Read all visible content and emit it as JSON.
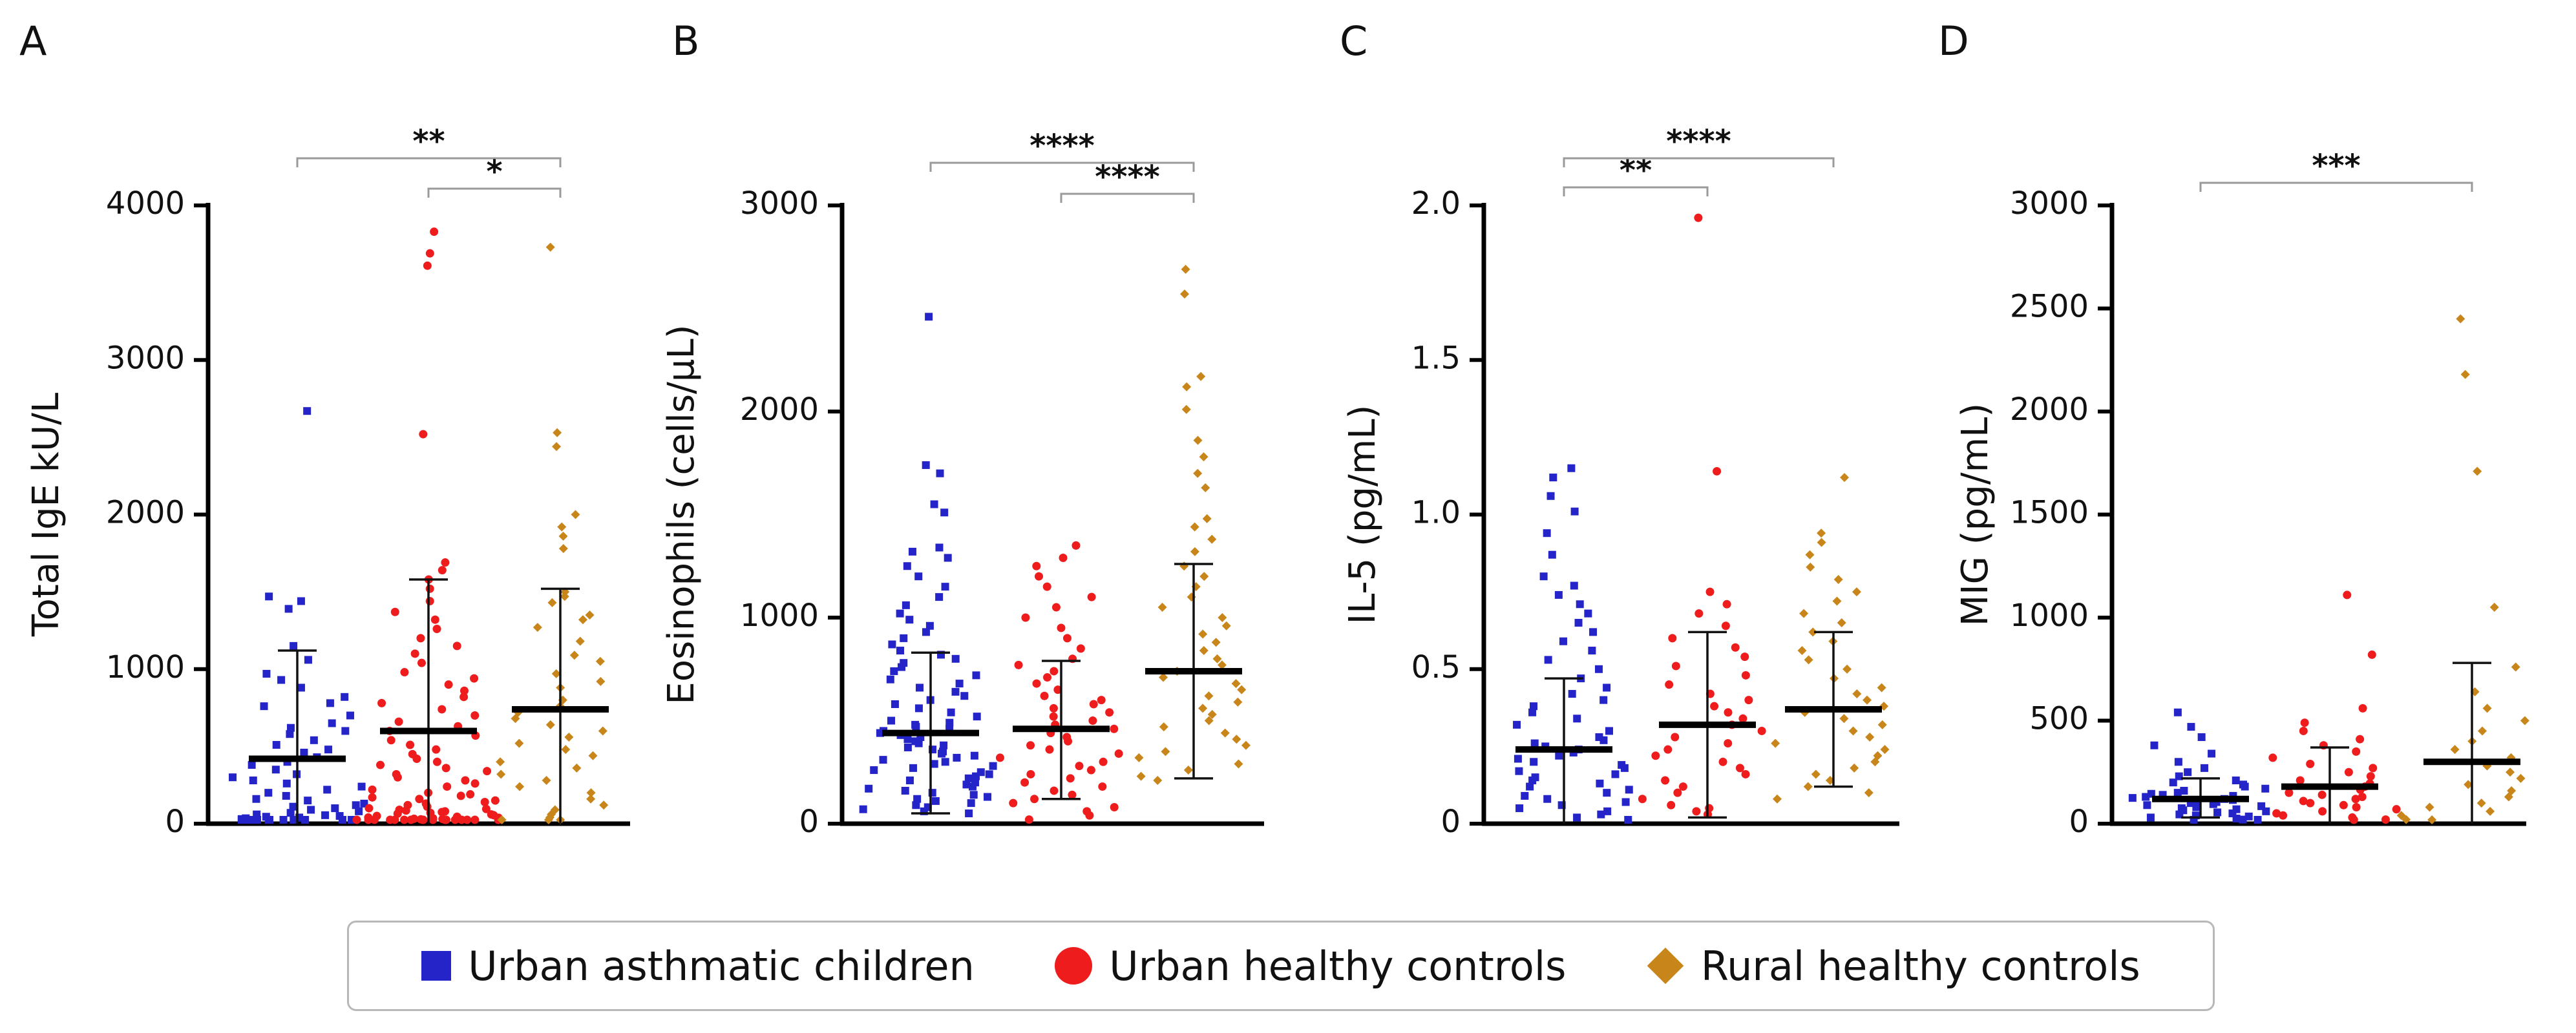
{
  "colors": {
    "urban_asthmatic": "#2424c8",
    "urban_healthy": "#ee1c1c",
    "rural_healthy": "#c8861a",
    "axis": "#000000",
    "bracket": "#9a9a9a"
  },
  "legend": {
    "items": [
      {
        "label": "Urban asthmatic children",
        "marker": "square",
        "color": "#2424c8"
      },
      {
        "label": "Urban healthy controls",
        "marker": "circle",
        "color": "#ee1c1c"
      },
      {
        "label": "Rural healthy controls",
        "marker": "diamond",
        "color": "#c8861a"
      }
    ]
  },
  "chart_data": [
    {
      "type": "scatter",
      "panel_label": "A",
      "ylabel": "Total IgE kU/L",
      "ylim": [
        0,
        4000
      ],
      "yticks": [
        0,
        1000,
        2000,
        3000,
        4000
      ],
      "yticklabels": [
        "0",
        "1000",
        "2000",
        "3000",
        "4000"
      ],
      "categories": [
        "Urban asthmatic children",
        "Urban healthy controls",
        "Rural healthy controls"
      ],
      "series": [
        {
          "name": "Urban asthmatic children",
          "marker": "square",
          "mean": 420,
          "sd_upper": 1120,
          "sd_lower": 0,
          "values": [
            2670,
            1470,
            1440,
            1390,
            1150,
            1060,
            970,
            930,
            880,
            820,
            780,
            760,
            700,
            650,
            620,
            600,
            580,
            540,
            510,
            480,
            460,
            430,
            400,
            380,
            350,
            320,
            300,
            280,
            260,
            240,
            220,
            200,
            180,
            160,
            150,
            130,
            120,
            110,
            100,
            90,
            80,
            70,
            60,
            55,
            50,
            45,
            40,
            35,
            30,
            25,
            20,
            18,
            15,
            12,
            10,
            8,
            6,
            5,
            4,
            3
          ]
        },
        {
          "name": "Urban healthy controls",
          "marker": "circle",
          "mean": 600,
          "sd_upper": 1580,
          "sd_lower": 0,
          "values": [
            3830,
            3690,
            3610,
            2520,
            1690,
            1640,
            1580,
            1520,
            1440,
            1370,
            1320,
            1260,
            1200,
            1150,
            1100,
            1040,
            980,
            940,
            900,
            860,
            820,
            780,
            740,
            700,
            660,
            630,
            600,
            570,
            540,
            510,
            480,
            450,
            420,
            400,
            380,
            360,
            340,
            320,
            300,
            280,
            260,
            240,
            220,
            200,
            190,
            180,
            170,
            160,
            150,
            140,
            130,
            120,
            110,
            100,
            95,
            90,
            85,
            80,
            75,
            70,
            65,
            60,
            55,
            50,
            45,
            40,
            38,
            35,
            32,
            30,
            28,
            25,
            22,
            20,
            18,
            16,
            14,
            12,
            10,
            9,
            8,
            7,
            6,
            5,
            4,
            3,
            2,
            1
          ]
        },
        {
          "name": "Rural healthy controls",
          "marker": "diamond",
          "mean": 740,
          "sd_upper": 1520,
          "sd_lower": 0,
          "values": [
            3730,
            2530,
            2440,
            2000,
            1920,
            1860,
            1780,
            1500,
            1470,
            1430,
            1350,
            1320,
            1270,
            1180,
            1090,
            1050,
            970,
            920,
            880,
            800,
            760,
            720,
            680,
            640,
            600,
            560,
            520,
            480,
            440,
            400,
            360,
            320,
            280,
            240,
            200,
            160,
            120,
            90,
            60,
            40,
            20,
            10,
            5
          ]
        }
      ],
      "significance": [
        {
          "from": "Urban asthmatic children",
          "to": "Rural healthy controls",
          "label": "**"
        },
        {
          "from": "Urban healthy controls",
          "to": "Rural healthy controls",
          "label": "*"
        }
      ]
    },
    {
      "type": "scatter",
      "panel_label": "B",
      "ylabel": "Eosinophils (cells/μL)",
      "ylim": [
        0,
        3000
      ],
      "yticks": [
        0,
        1000,
        2000,
        3000
      ],
      "yticklabels": [
        "0",
        "1000",
        "2000",
        "3000"
      ],
      "categories": [
        "Urban asthmatic children",
        "Urban healthy controls",
        "Rural healthy controls"
      ],
      "series": [
        {
          "name": "Urban asthmatic children",
          "marker": "square",
          "mean": 440,
          "sd_upper": 830,
          "sd_lower": 50,
          "values": [
            2460,
            1740,
            1700,
            1550,
            1510,
            1340,
            1320,
            1290,
            1250,
            1200,
            1150,
            1100,
            1060,
            1020,
            990,
            960,
            930,
            900,
            870,
            840,
            820,
            800,
            780,
            760,
            740,
            720,
            700,
            680,
            660,
            640,
            620,
            600,
            580,
            560,
            540,
            520,
            500,
            490,
            480,
            470,
            460,
            450,
            440,
            430,
            420,
            410,
            400,
            390,
            380,
            370,
            360,
            350,
            340,
            330,
            320,
            310,
            300,
            290,
            280,
            270,
            260,
            250,
            240,
            230,
            220,
            210,
            200,
            190,
            180,
            170,
            160,
            150,
            140,
            130,
            120,
            110,
            100,
            90,
            80,
            70,
            60,
            50
          ]
        },
        {
          "name": "Urban healthy controls",
          "marker": "circle",
          "mean": 460,
          "sd_upper": 790,
          "sd_lower": 120,
          "values": [
            1350,
            1290,
            1250,
            1200,
            1150,
            1100,
            1050,
            1000,
            950,
            900,
            850,
            800,
            770,
            740,
            710,
            680,
            650,
            620,
            600,
            580,
            560,
            540,
            520,
            500,
            480,
            460,
            440,
            420,
            400,
            380,
            360,
            340,
            320,
            300,
            280,
            260,
            240,
            220,
            200,
            180,
            160,
            140,
            120,
            100,
            80,
            60,
            40,
            20
          ]
        },
        {
          "name": "Rural healthy controls",
          "marker": "diamond",
          "mean": 740,
          "sd_upper": 1260,
          "sd_lower": 220,
          "values": [
            2690,
            2570,
            2170,
            2120,
            2010,
            1860,
            1780,
            1700,
            1630,
            1480,
            1440,
            1380,
            1320,
            1250,
            1200,
            1150,
            1100,
            1050,
            1000,
            960,
            920,
            880,
            840,
            800,
            770,
            740,
            710,
            680,
            650,
            620,
            590,
            560,
            530,
            500,
            470,
            440,
            410,
            380,
            350,
            320,
            290,
            260,
            230,
            210
          ]
        }
      ],
      "significance": [
        {
          "from": "Urban asthmatic children",
          "to": "Rural healthy controls",
          "label": "****"
        },
        {
          "from": "Urban healthy controls",
          "to": "Rural healthy controls",
          "label": "****"
        }
      ]
    },
    {
      "type": "scatter",
      "panel_label": "C",
      "ylabel": "IL-5 (pg/mL)",
      "ylim": [
        0,
        2.0
      ],
      "yticks": [
        0,
        0.5,
        1.0,
        1.5,
        2.0
      ],
      "yticklabels": [
        "0",
        "0.5",
        "1.0",
        "1.5",
        "2.0"
      ],
      "categories": [
        "Urban asthmatic children",
        "Urban healthy controls",
        "Rural healthy controls"
      ],
      "series": [
        {
          "name": "Urban asthmatic children",
          "marker": "square",
          "mean": 0.24,
          "sd_upper": 0.47,
          "sd_lower": 0.0,
          "values": [
            1.15,
            1.12,
            1.06,
            1.01,
            0.94,
            0.87,
            0.8,
            0.77,
            0.74,
            0.71,
            0.68,
            0.65,
            0.62,
            0.59,
            0.56,
            0.53,
            0.5,
            0.47,
            0.44,
            0.42,
            0.4,
            0.38,
            0.36,
            0.34,
            0.32,
            0.3,
            0.28,
            0.27,
            0.26,
            0.25,
            0.24,
            0.23,
            0.22,
            0.21,
            0.2,
            0.19,
            0.18,
            0.17,
            0.16,
            0.15,
            0.14,
            0.13,
            0.12,
            0.11,
            0.1,
            0.09,
            0.08,
            0.07,
            0.06,
            0.05,
            0.04,
            0.03,
            0.02,
            0.01
          ]
        },
        {
          "name": "Urban healthy controls",
          "marker": "circle",
          "mean": 0.32,
          "sd_upper": 0.62,
          "sd_lower": 0.02,
          "values": [
            1.96,
            1.14,
            0.75,
            0.71,
            0.68,
            0.64,
            0.6,
            0.57,
            0.54,
            0.51,
            0.48,
            0.45,
            0.42,
            0.4,
            0.38,
            0.36,
            0.34,
            0.32,
            0.3,
            0.28,
            0.26,
            0.24,
            0.22,
            0.2,
            0.18,
            0.16,
            0.14,
            0.12,
            0.1,
            0.08,
            0.06,
            0.05,
            0.04,
            0.03
          ]
        },
        {
          "name": "Rural healthy controls",
          "marker": "diamond",
          "mean": 0.37,
          "sd_upper": 0.62,
          "sd_lower": 0.12,
          "values": [
            1.12,
            0.94,
            0.91,
            0.87,
            0.83,
            0.79,
            0.75,
            0.72,
            0.68,
            0.65,
            0.62,
            0.59,
            0.56,
            0.53,
            0.5,
            0.47,
            0.44,
            0.42,
            0.4,
            0.38,
            0.36,
            0.34,
            0.32,
            0.3,
            0.28,
            0.26,
            0.24,
            0.22,
            0.2,
            0.18,
            0.16,
            0.14,
            0.12,
            0.1,
            0.08
          ]
        }
      ],
      "significance": [
        {
          "from": "Urban asthmatic children",
          "to": "Urban healthy controls",
          "label": "**"
        },
        {
          "from": "Urban asthmatic children",
          "to": "Rural healthy controls",
          "label": "****"
        }
      ]
    },
    {
      "type": "scatter",
      "panel_label": "D",
      "ylabel": "MIG (pg/mL)",
      "ylim": [
        0,
        3000
      ],
      "yticks": [
        0,
        500,
        1000,
        1500,
        2000,
        2500,
        3000
      ],
      "yticklabels": [
        "0",
        "500",
        "1000",
        "1500",
        "2000",
        "2500",
        "3000"
      ],
      "categories": [
        "Urban asthmatic children",
        "Urban healthy controls",
        "Rural healthy controls"
      ],
      "series": [
        {
          "name": "Urban asthmatic children",
          "marker": "square",
          "mean": 120,
          "sd_upper": 220,
          "sd_lower": 30,
          "values": [
            540,
            470,
            420,
            380,
            340,
            300,
            270,
            250,
            230,
            210,
            200,
            190,
            180,
            170,
            160,
            150,
            145,
            140,
            135,
            130,
            125,
            120,
            115,
            110,
            105,
            100,
            95,
            90,
            85,
            80,
            75,
            70,
            65,
            60,
            55,
            50,
            45,
            40,
            35,
            30,
            25,
            20,
            15,
            10
          ]
        },
        {
          "name": "Urban healthy controls",
          "marker": "circle",
          "mean": 180,
          "sd_upper": 370,
          "sd_lower": 0,
          "values": [
            1110,
            820,
            560,
            490,
            450,
            410,
            380,
            350,
            320,
            290,
            270,
            250,
            230,
            210,
            195,
            180,
            165,
            150,
            140,
            130,
            120,
            110,
            100,
            90,
            80,
            70,
            60,
            50,
            40,
            30,
            20,
            10
          ]
        },
        {
          "name": "Rural healthy controls",
          "marker": "diamond",
          "mean": 300,
          "sd_upper": 780,
          "sd_lower": 0,
          "values": [
            2450,
            2180,
            1710,
            1050,
            760,
            640,
            560,
            500,
            450,
            400,
            360,
            320,
            280,
            250,
            220,
            190,
            160,
            130,
            100,
            80,
            60,
            40,
            20,
            10
          ]
        }
      ],
      "significance": [
        {
          "from": "Urban asthmatic children",
          "to": "Rural healthy controls",
          "label": "***"
        }
      ]
    }
  ]
}
